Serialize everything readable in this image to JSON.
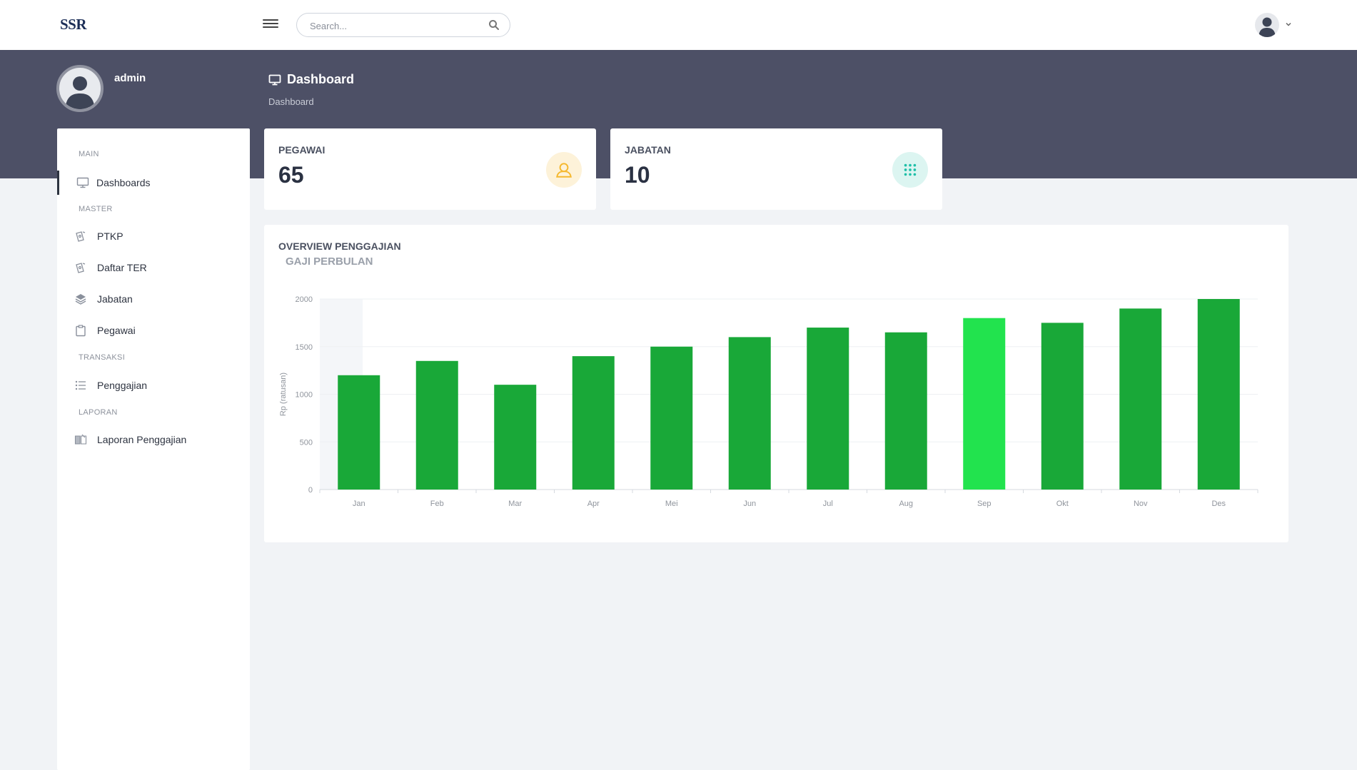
{
  "brand": {
    "logo_text": "SSR"
  },
  "topbar": {
    "search_placeholder": "Search...",
    "icons": {
      "menu": "hamburger-icon",
      "search": "search-icon",
      "user": "user-avatar-icon",
      "caret": "chevron-down-icon"
    }
  },
  "profile": {
    "name": "admin"
  },
  "page": {
    "title": "Dashboard",
    "breadcrumb": "Dashboard",
    "icon": "monitor-icon"
  },
  "sidebar": {
    "sections": [
      {
        "heading": "MAIN",
        "items": [
          {
            "label": "Dashboards",
            "icon": "monitor-icon",
            "active": true
          }
        ]
      },
      {
        "heading": "MASTER",
        "items": [
          {
            "label": "PTKP",
            "icon": "ticket-icon"
          },
          {
            "label": "Daftar TER",
            "icon": "ticket-icon"
          },
          {
            "label": "Jabatan",
            "icon": "layers-icon"
          },
          {
            "label": "Pegawai",
            "icon": "clipboard-icon"
          }
        ]
      },
      {
        "heading": "TRANSAKSI",
        "items": [
          {
            "label": "Penggajian",
            "icon": "list-icon"
          }
        ]
      },
      {
        "heading": "LAPORAN",
        "items": [
          {
            "label": "Laporan Penggajian",
            "icon": "book-icon"
          }
        ]
      }
    ]
  },
  "stats": [
    {
      "label": "PEGAWAI",
      "value": "65",
      "icon": "user-icon",
      "color": "#f5b82e",
      "bg": "#fdf2d9"
    },
    {
      "label": "JABATAN",
      "value": "10",
      "icon": "grid-dots-icon",
      "color": "#1fbfa8",
      "bg": "#dcf5f1"
    }
  ],
  "overview": {
    "title": "OVERVIEW PENGGAJIAN"
  },
  "chart_data": {
    "type": "bar",
    "title": "GAJI PERBULAN",
    "xlabel": "",
    "ylabel": "Rp (ratusan)",
    "categories": [
      "Jan",
      "Feb",
      "Mar",
      "Apr",
      "Mei",
      "Jun",
      "Jul",
      "Aug",
      "Sep",
      "Okt",
      "Nov",
      "Des"
    ],
    "values": [
      1200,
      1350,
      1100,
      1400,
      1500,
      1600,
      1700,
      1650,
      1800,
      1750,
      1900,
      2000
    ],
    "ylim": [
      0,
      2000
    ],
    "yticks": [
      0,
      500,
      1000,
      1500,
      2000
    ],
    "grid": true,
    "bar_color": "#19a838",
    "highlight_color": "#22e34e",
    "highlight_index": 8
  }
}
